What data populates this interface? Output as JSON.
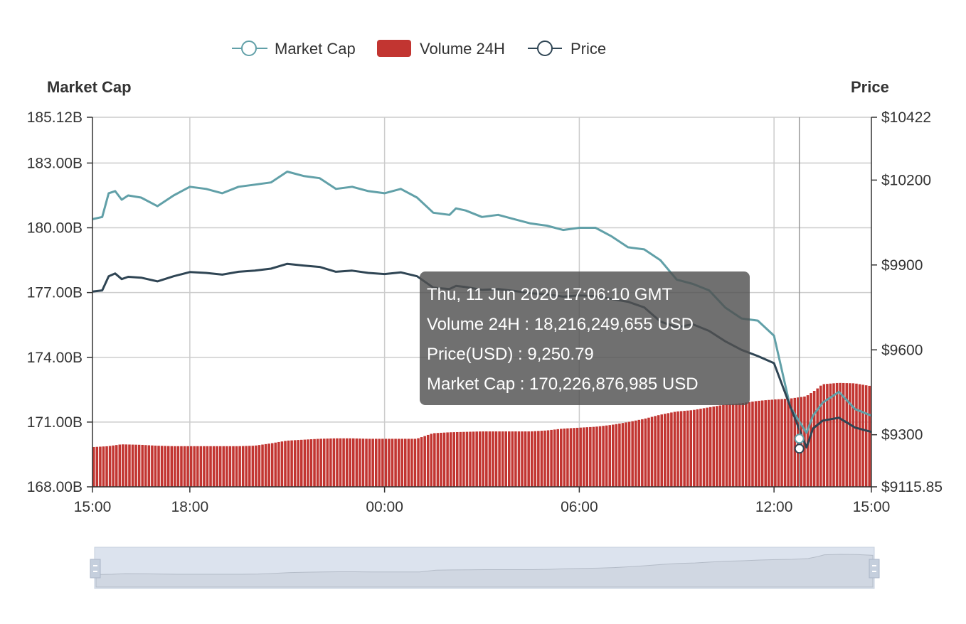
{
  "chart_data": {
    "type": "line",
    "colors": {
      "market_cap": "#61a0a8",
      "volume": "#c23531",
      "price": "#2f4554",
      "grid": "#cccccc",
      "axis": "#333333"
    },
    "legend": [
      {
        "name": "Market Cap",
        "icon": "circle-line-icon"
      },
      {
        "name": "Volume 24H",
        "icon": "rounded-rect-icon"
      },
      {
        "name": "Price",
        "icon": "circle-line-icon"
      }
    ],
    "left_axis": {
      "name": "Market Cap",
      "ylim": [
        168.0,
        185.12
      ],
      "ticks": [
        "185.12B",
        "183.00B",
        "180.00B",
        "177.00B",
        "174.00B",
        "171.00B",
        "168.00B"
      ]
    },
    "right_axis": {
      "name": "Price",
      "ylim": [
        9115.85,
        10422
      ],
      "ticks": [
        "$10422",
        "$10200",
        "$9900",
        "$9600",
        "$9300",
        "$9115.85"
      ]
    },
    "x_axis": {
      "ticks": [
        "15:00",
        "18:00",
        "00:00",
        "06:00",
        "12:00",
        "15:00"
      ],
      "tick_hours": [
        0,
        3,
        9,
        15,
        21,
        24
      ],
      "range_hours": [
        0,
        24
      ]
    },
    "series": [
      {
        "name": "Market Cap",
        "unit": "B USD",
        "x": [
          0,
          0.3,
          0.5,
          0.7,
          0.9,
          1.1,
          1.5,
          2,
          2.5,
          3,
          3.5,
          4,
          4.5,
          5,
          5.5,
          6,
          6.5,
          7,
          7.5,
          8,
          8.5,
          9,
          9.5,
          10,
          10.5,
          11,
          11.2,
          11.5,
          12,
          12.5,
          13,
          13.5,
          14,
          14.5,
          15,
          15.5,
          16,
          16.5,
          17,
          17.5,
          18,
          18.5,
          19,
          19.5,
          20,
          20.5,
          21,
          21.5,
          22,
          22.2,
          22.5,
          23,
          23.5,
          24
        ],
        "values": [
          180.4,
          180.5,
          181.6,
          181.7,
          181.3,
          181.5,
          181.4,
          181.0,
          181.5,
          181.9,
          181.8,
          181.6,
          181.9,
          182.0,
          182.1,
          182.6,
          182.4,
          182.3,
          181.8,
          181.9,
          181.7,
          181.6,
          181.8,
          181.4,
          180.7,
          180.6,
          180.9,
          180.8,
          180.5,
          180.6,
          180.4,
          180.2,
          180.1,
          179.9,
          180.0,
          180.0,
          179.6,
          179.1,
          179.0,
          178.5,
          177.6,
          177.4,
          177.1,
          176.3,
          175.8,
          175.7,
          175.0,
          171.7,
          170.5,
          171.3,
          171.9,
          172.4,
          171.6,
          171.3
        ]
      },
      {
        "name": "Price",
        "unit": "USD",
        "x": [
          0,
          0.3,
          0.5,
          0.7,
          0.9,
          1.1,
          1.5,
          2,
          2.5,
          3,
          3.5,
          4,
          4.5,
          5,
          5.5,
          6,
          6.5,
          7,
          7.5,
          8,
          8.5,
          9,
          9.5,
          10,
          10.5,
          11,
          11.2,
          11.5,
          12,
          12.5,
          13,
          13.5,
          14,
          14.5,
          15,
          15.5,
          16,
          16.5,
          17,
          17.5,
          18,
          18.5,
          19,
          19.5,
          20,
          20.5,
          21,
          21.5,
          22,
          22.2,
          22.5,
          23,
          23.5,
          24
        ],
        "values": [
          9806,
          9810,
          9860,
          9870,
          9850,
          9858,
          9855,
          9842,
          9860,
          9875,
          9872,
          9866,
          9876,
          9880,
          9887,
          9904,
          9898,
          9893,
          9876,
          9880,
          9872,
          9868,
          9874,
          9860,
          9820,
          9815,
          9826,
          9822,
          9812,
          9815,
          9808,
          9800,
          9796,
          9788,
          9792,
          9790,
          9780,
          9770,
          9750,
          9700,
          9680,
          9690,
          9667,
          9630,
          9600,
          9578,
          9553,
          9400,
          9255,
          9322,
          9350,
          9360,
          9325,
          9310
        ]
      },
      {
        "name": "Volume 24H",
        "unit": "B USD",
        "x": [
          0,
          0.5,
          0.9,
          1.5,
          2,
          2.5,
          3,
          3.5,
          4,
          4.5,
          5,
          5.5,
          6,
          6.5,
          7,
          7.5,
          8,
          8.5,
          9,
          9.5,
          10,
          10.5,
          11,
          11.5,
          12,
          12.5,
          13,
          13.5,
          14,
          14.5,
          15,
          15.5,
          16,
          16.5,
          17,
          17.5,
          18,
          18.5,
          19,
          19.5,
          20,
          20.5,
          21,
          21.5,
          22,
          22.3,
          22.5,
          23,
          23.5,
          24
        ],
        "values": [
          8.6,
          8.8,
          9.2,
          9.1,
          8.9,
          8.8,
          8.8,
          8.8,
          8.8,
          8.8,
          8.9,
          9.4,
          10.0,
          10.2,
          10.4,
          10.5,
          10.5,
          10.4,
          10.4,
          10.4,
          10.4,
          11.6,
          11.8,
          11.9,
          12.0,
          12.0,
          12.0,
          12.0,
          12.2,
          12.6,
          12.8,
          13.0,
          13.4,
          14.0,
          14.7,
          15.6,
          16.3,
          16.6,
          17.2,
          17.8,
          18.1,
          18.6,
          18.9,
          19.1,
          19.6,
          21.0,
          22.2,
          22.5,
          22.4,
          21.8
        ]
      }
    ],
    "volume_scale_max": 80,
    "cursor_hour": 21.78,
    "cursor_values": {
      "market_cap": 170.23,
      "price": 9250.79
    },
    "tooltip": {
      "date": "Thu, 11 Jun 2020 17:06:10 GMT",
      "volume": "Volume 24H : 18,216,249,655 USD",
      "price": "Price(USD) : 9,250.79",
      "market_cap": "Market Cap : 170,226,876,985 USD"
    }
  }
}
